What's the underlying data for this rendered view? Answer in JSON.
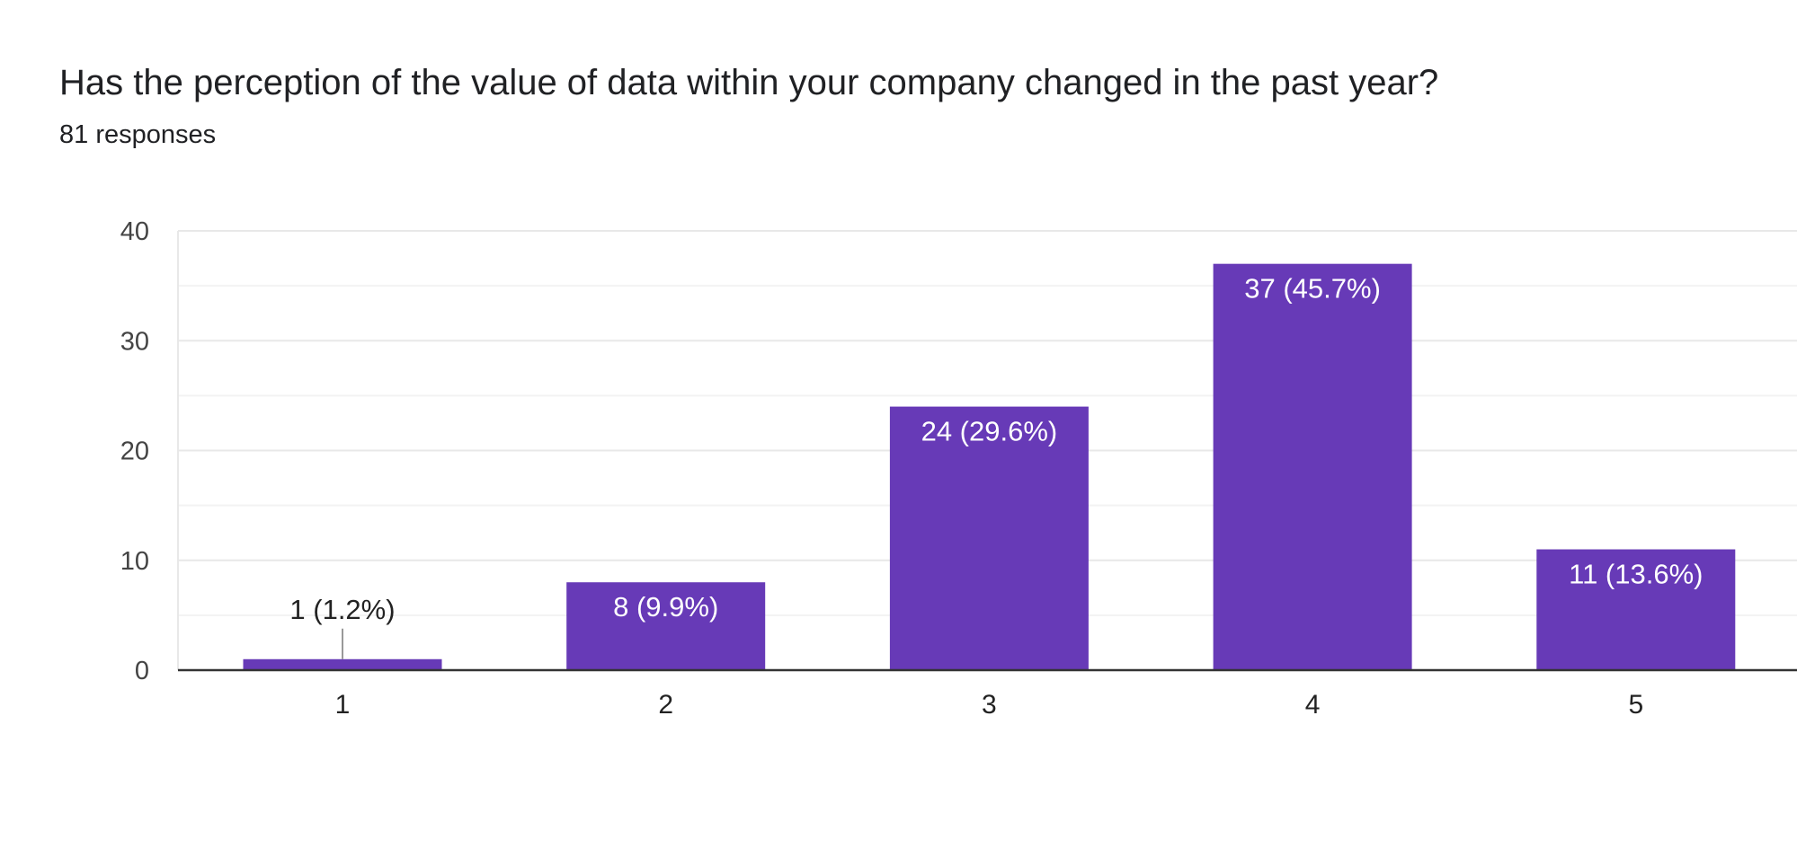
{
  "chart_data": {
    "type": "bar",
    "title": "Has the perception of the value of data within your company changed in the past year?",
    "subtitle": "81 responses",
    "categories": [
      "1",
      "2",
      "3",
      "4",
      "5"
    ],
    "values": [
      1,
      8,
      24,
      37,
      11
    ],
    "data_labels": [
      "1 (1.2%)",
      "8 (9.9%)",
      "24 (29.6%)",
      "37 (45.7%)",
      "11 (13.6%)"
    ],
    "ylim": [
      0,
      40
    ],
    "yticks": [
      0,
      10,
      20,
      30,
      40
    ],
    "xlabel": "",
    "ylabel": "",
    "grid": true,
    "legend": "none"
  },
  "colors": {
    "bar": "#673ab7",
    "gridline": "#e8e8e8",
    "minor_gridline": "#f3f3f3",
    "axis": "#333333",
    "label_inside": "#ffffff",
    "label_outside": "#222222"
  }
}
